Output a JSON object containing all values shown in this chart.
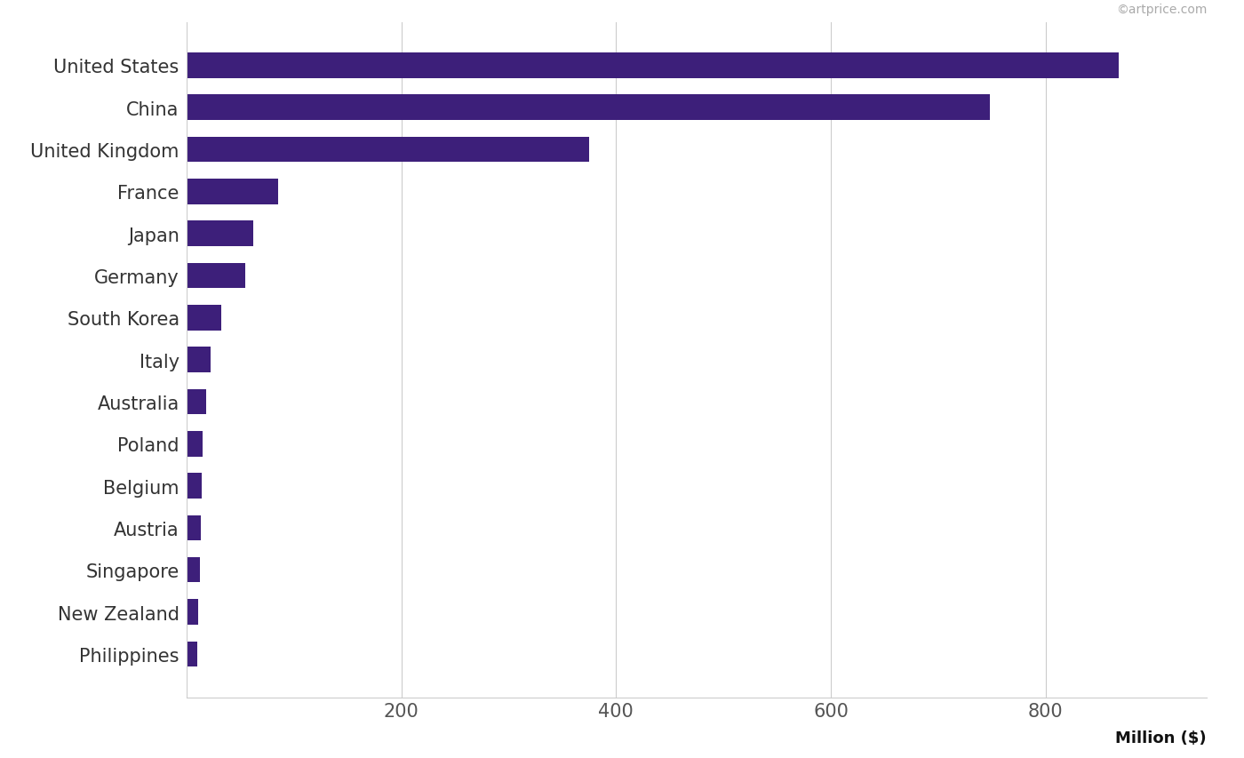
{
  "categories": [
    "Philippines",
    "New Zealand",
    "Singapore",
    "Austria",
    "Belgium",
    "Poland",
    "Australia",
    "Italy",
    "South Korea",
    "Germany",
    "Japan",
    "France",
    "United Kingdom",
    "China",
    "United States"
  ],
  "values": [
    10,
    11,
    12,
    13,
    14,
    15,
    18,
    22,
    32,
    55,
    62,
    85,
    375,
    748,
    868
  ],
  "bar_color": "#3d1f7a",
  "background_color": "#ffffff",
  "grid_color": "#cccccc",
  "xlabel": "Million ($)",
  "watermark": "©artprice.com",
  "xlim": [
    0,
    950
  ],
  "xticks": [
    200,
    400,
    600,
    800
  ],
  "label_fontsize": 15,
  "tick_fontsize": 15,
  "watermark_fontsize": 10,
  "xlabel_fontsize": 13,
  "bar_height": 0.6
}
